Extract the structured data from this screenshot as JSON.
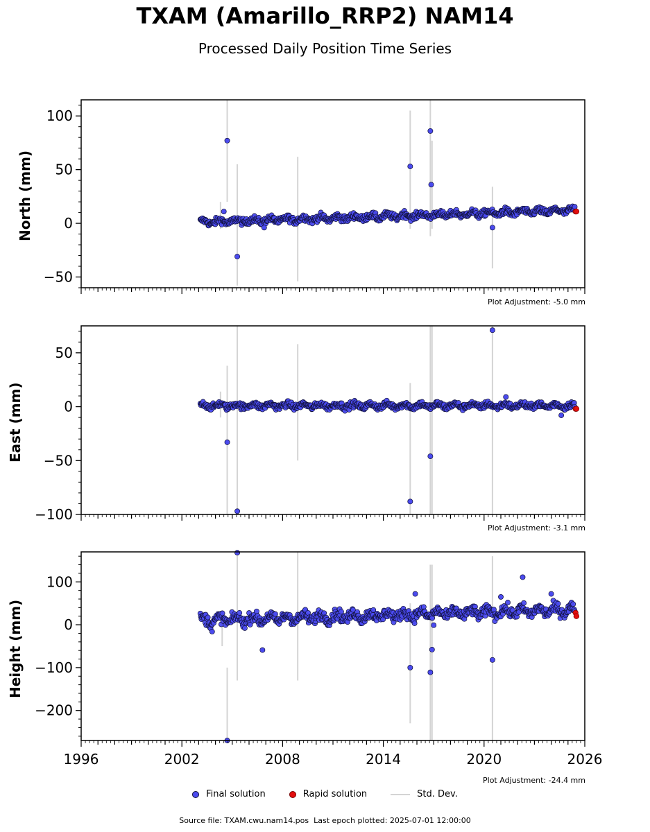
{
  "title": "TXAM (Amarillo_RRP2) NAM14",
  "subtitle": "Processed Daily Position Time Series",
  "legend": {
    "final_label": "Final solution",
    "rapid_label": "Rapid solution",
    "std_label": "Std. Dev."
  },
  "footer": {
    "source_prefix": "Source file: ",
    "source_file": "TXAM.cwu.nam14.pos",
    "last_prefix": "Last epoch plotted: ",
    "last_epoch": "2025-07-01 12:00:00"
  },
  "colors": {
    "final": "#4b4bef",
    "final_edge": "#10103a",
    "rapid": "#e30e0e",
    "std": "#d4d4d4"
  },
  "chart_data": [
    {
      "type": "scatter",
      "ylabel": "North (mm)",
      "adjustment": "Plot Adjustment: -5.0 mm",
      "xlim": [
        1996,
        2026
      ],
      "ylim": [
        -60,
        115
      ],
      "yticks": [
        -50,
        0,
        50,
        100
      ],
      "ytick_labels": [
        "−50",
        "0",
        "50",
        "100"
      ],
      "trend": {
        "start": [
          2003.1,
          1
        ],
        "end": [
          2025.4,
          12
        ],
        "scatter": 2.2
      },
      "outliers": [
        [
          2004.5,
          11
        ],
        [
          2004.7,
          77
        ],
        [
          2005.3,
          -31
        ],
        [
          2006.9,
          -4
        ],
        [
          2015.6,
          53
        ],
        [
          2016.8,
          86
        ],
        [
          2016.85,
          36
        ],
        [
          2020.5,
          -4
        ]
      ],
      "std_bars": [
        [
          2004.7,
          20,
          115
        ],
        [
          2005.3,
          -58,
          55
        ],
        [
          2008.9,
          -54,
          62
        ],
        [
          2015.6,
          -5,
          105
        ],
        [
          2016.8,
          -12,
          115
        ],
        [
          2016.9,
          -5,
          77
        ],
        [
          2020.5,
          -42,
          34
        ],
        [
          2004.3,
          -5,
          20
        ]
      ],
      "rapid": [
        [
          2025.45,
          11
        ],
        [
          2025.5,
          11
        ]
      ]
    },
    {
      "type": "scatter",
      "ylabel": "East (mm)",
      "adjustment": "Plot Adjustment: -3.1 mm",
      "xlim": [
        1996,
        2026
      ],
      "ylim": [
        -100,
        75
      ],
      "yticks": [
        -100,
        -50,
        0,
        50
      ],
      "ytick_labels": [
        "−100",
        "−50",
        "0",
        "50"
      ],
      "trend": {
        "start": [
          2003.1,
          1
        ],
        "end": [
          2025.4,
          1
        ],
        "scatter": 2.0
      },
      "outliers": [
        [
          2004.7,
          -33
        ],
        [
          2005.3,
          -97
        ],
        [
          2015.6,
          -88
        ],
        [
          2016.8,
          -46
        ],
        [
          2020.5,
          71
        ],
        [
          2021.3,
          9
        ],
        [
          2024.6,
          -8
        ]
      ],
      "std_bars": [
        [
          2004.7,
          -100,
          38
        ],
        [
          2005.3,
          -100,
          75
        ],
        [
          2008.9,
          -50,
          58
        ],
        [
          2015.6,
          -100,
          22
        ],
        [
          2016.8,
          -100,
          75
        ],
        [
          2016.9,
          -100,
          75
        ],
        [
          2020.5,
          -100,
          75
        ],
        [
          2004.3,
          -10,
          14
        ]
      ],
      "rapid": [
        [
          2025.45,
          -2
        ],
        [
          2025.5,
          -2
        ]
      ]
    },
    {
      "type": "scatter",
      "ylabel": "Height (mm)",
      "adjustment": "Plot Adjustment: -24.4 mm",
      "xlim": [
        1996,
        2026
      ],
      "xticks": [
        1996,
        2002,
        2008,
        2014,
        2020,
        2026
      ],
      "ylim": [
        -270,
        170
      ],
      "yticks": [
        -200,
        -100,
        0,
        100
      ],
      "ytick_labels": [
        "−200",
        "−100",
        "0",
        "100"
      ],
      "trend": {
        "start": [
          2003.1,
          10
        ],
        "end": [
          2025.4,
          35
        ],
        "scatter": 9
      },
      "outliers": [
        [
          2003.8,
          -16
        ],
        [
          2004.7,
          -270
        ],
        [
          2005.3,
          168
        ],
        [
          2006.8,
          -59
        ],
        [
          2015.6,
          -100
        ],
        [
          2015.9,
          72
        ],
        [
          2016.8,
          -111
        ],
        [
          2016.9,
          -58
        ],
        [
          2017.0,
          -1
        ],
        [
          2020.5,
          -82
        ],
        [
          2021.0,
          65
        ],
        [
          2022.3,
          111
        ],
        [
          2024.0,
          72
        ]
      ],
      "std_bars": [
        [
          2004.7,
          -270,
          -100
        ],
        [
          2005.3,
          -130,
          168
        ],
        [
          2008.9,
          -130,
          170
        ],
        [
          2015.6,
          -230,
          50
        ],
        [
          2016.8,
          -270,
          140
        ],
        [
          2016.9,
          -270,
          140
        ],
        [
          2020.5,
          -270,
          160
        ],
        [
          2004.4,
          -50,
          30
        ]
      ],
      "rapid": [
        [
          2025.45,
          28
        ],
        [
          2025.5,
          20
        ]
      ]
    }
  ]
}
